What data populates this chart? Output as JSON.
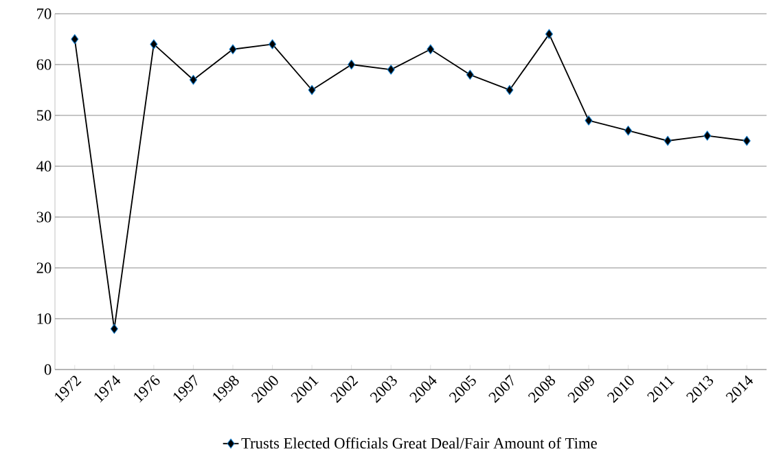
{
  "chart_data": {
    "type": "line",
    "categories": [
      "1972",
      "1974",
      "1976",
      "1997",
      "1998",
      "2000",
      "2001",
      "2002",
      "2003",
      "2004",
      "2005",
      "2007",
      "2008",
      "2009",
      "2010",
      "2011",
      "2013",
      "2014"
    ],
    "series": [
      {
        "name": "Trusts Elected Officials Great Deal/Fair Amount of Time",
        "color": "#000000",
        "values": [
          65,
          8,
          64,
          57,
          63,
          64,
          55,
          60,
          59,
          63,
          58,
          55,
          66,
          49,
          47,
          45,
          46,
          45
        ]
      }
    ],
    "ylim": [
      0,
      70
    ],
    "yticks": [
      0,
      10,
      20,
      30,
      40,
      50,
      60,
      70
    ],
    "grid": "y",
    "legend": "bottom",
    "marker": "diamond",
    "line_style": "solid"
  }
}
